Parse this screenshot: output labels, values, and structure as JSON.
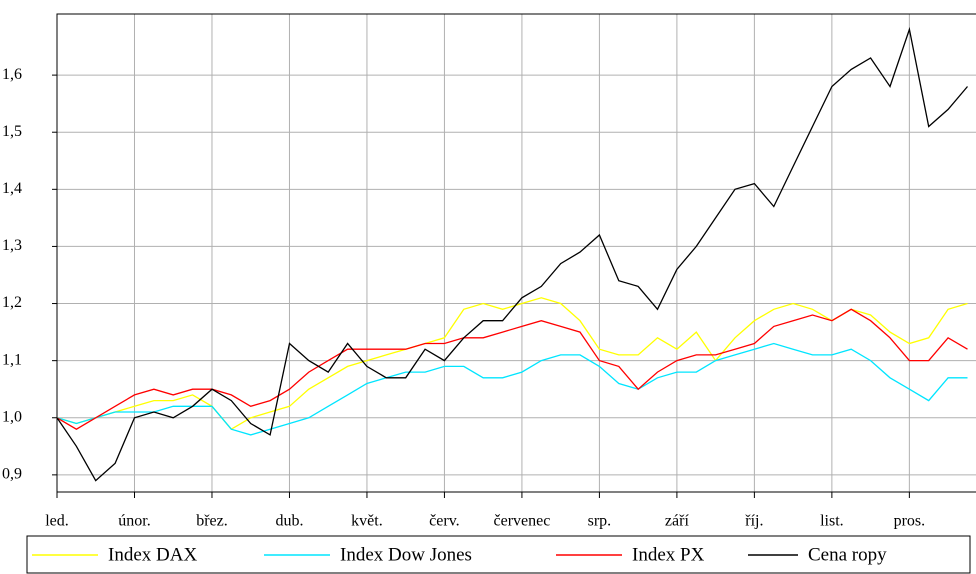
{
  "chart_data": {
    "type": "line",
    "x": [
      0,
      0.25,
      0.5,
      0.75,
      1,
      1.25,
      1.5,
      1.75,
      2,
      2.25,
      2.5,
      2.75,
      3,
      3.25,
      3.5,
      3.75,
      4,
      4.25,
      4.5,
      4.75,
      5,
      5.25,
      5.5,
      5.75,
      6,
      6.25,
      6.5,
      6.75,
      7,
      7.25,
      7.5,
      7.75,
      8,
      8.25,
      8.5,
      8.75,
      9,
      9.25,
      9.5,
      9.75,
      10,
      10.25,
      10.5,
      10.75,
      11,
      11.25,
      11.5,
      11.75
    ],
    "xlim": [
      0,
      11.86
    ],
    "xticks": [
      {
        "value": 0,
        "label": "led."
      },
      {
        "value": 1,
        "label": "únor."
      },
      {
        "value": 2,
        "label": "břez."
      },
      {
        "value": 3,
        "label": "dub."
      },
      {
        "value": 4,
        "label": "květ."
      },
      {
        "value": 5,
        "label": "červ."
      },
      {
        "value": 6,
        "label": "červenec"
      },
      {
        "value": 7,
        "label": "srp."
      },
      {
        "value": 8,
        "label": "září"
      },
      {
        "value": 9,
        "label": "říj."
      },
      {
        "value": 10,
        "label": "list."
      },
      {
        "value": 11,
        "label": "pros."
      }
    ],
    "ylim": [
      0.87,
      1.707
    ],
    "yticks": [
      {
        "value": 0.9,
        "label": "0,9"
      },
      {
        "value": 1.0,
        "label": "1,0"
      },
      {
        "value": 1.1,
        "label": "1,1"
      },
      {
        "value": 1.2,
        "label": "1,2"
      },
      {
        "value": 1.3,
        "label": "1,3"
      },
      {
        "value": 1.4,
        "label": "1,4"
      },
      {
        "value": 1.5,
        "label": "1,5"
      },
      {
        "value": 1.6,
        "label": "1,6"
      }
    ],
    "grid": true,
    "legend": "bottom",
    "series": [
      {
        "name": "Index DAX",
        "color": "#ffff00",
        "values": [
          1.0,
          0.99,
          1.0,
          1.01,
          1.02,
          1.03,
          1.03,
          1.04,
          1.02,
          0.98,
          1.0,
          1.01,
          1.02,
          1.05,
          1.07,
          1.09,
          1.1,
          1.11,
          1.12,
          1.13,
          1.14,
          1.19,
          1.2,
          1.19,
          1.2,
          1.21,
          1.2,
          1.17,
          1.12,
          1.11,
          1.11,
          1.14,
          1.12,
          1.15,
          1.1,
          1.14,
          1.17,
          1.19,
          1.2,
          1.19,
          1.17,
          1.19,
          1.18,
          1.15,
          1.13,
          1.14,
          1.19,
          1.2
        ]
      },
      {
        "name": "Index Dow Jones",
        "color": "#00e5ff",
        "values": [
          1.0,
          0.99,
          1.0,
          1.01,
          1.01,
          1.01,
          1.02,
          1.02,
          1.02,
          0.98,
          0.97,
          0.98,
          0.99,
          1.0,
          1.02,
          1.04,
          1.06,
          1.07,
          1.08,
          1.08,
          1.09,
          1.09,
          1.07,
          1.07,
          1.08,
          1.1,
          1.11,
          1.11,
          1.09,
          1.06,
          1.05,
          1.07,
          1.08,
          1.08,
          1.1,
          1.11,
          1.12,
          1.13,
          1.12,
          1.11,
          1.11,
          1.12,
          1.1,
          1.07,
          1.05,
          1.03,
          1.07,
          1.07
        ]
      },
      {
        "name": "Index PX",
        "color": "#ff0000",
        "values": [
          1.0,
          0.98,
          1.0,
          1.02,
          1.04,
          1.05,
          1.04,
          1.05,
          1.05,
          1.04,
          1.02,
          1.03,
          1.05,
          1.08,
          1.1,
          1.12,
          1.12,
          1.12,
          1.12,
          1.13,
          1.13,
          1.14,
          1.14,
          1.15,
          1.16,
          1.17,
          1.16,
          1.15,
          1.1,
          1.09,
          1.05,
          1.08,
          1.1,
          1.11,
          1.11,
          1.12,
          1.13,
          1.16,
          1.17,
          1.18,
          1.17,
          1.19,
          1.17,
          1.14,
          1.1,
          1.1,
          1.14,
          1.12
        ]
      },
      {
        "name": "Cena ropy",
        "color": "#000000",
        "values": [
          1.0,
          0.95,
          0.89,
          0.92,
          1.0,
          1.01,
          1.0,
          1.02,
          1.05,
          1.03,
          0.99,
          0.97,
          1.13,
          1.1,
          1.08,
          1.13,
          1.09,
          1.07,
          1.07,
          1.12,
          1.1,
          1.14,
          1.17,
          1.17,
          1.21,
          1.23,
          1.27,
          1.29,
          1.32,
          1.24,
          1.23,
          1.19,
          1.26,
          1.3,
          1.35,
          1.4,
          1.41,
          1.37,
          1.44,
          1.51,
          1.58,
          1.61,
          1.63,
          1.58,
          1.68,
          1.51,
          1.54,
          1.58
        ]
      }
    ]
  }
}
